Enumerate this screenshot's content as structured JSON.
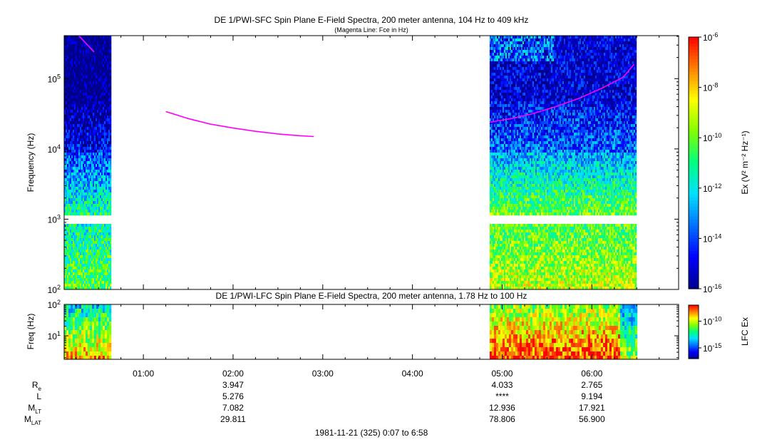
{
  "title": "DE 1/PWI-SFC  Spin Plane E-Field Spectra, 200 meter antenna, 104 Hz to 409 kHz",
  "subtitle": "(Magenta Line: Fce in Hz)",
  "lower_title": "DE 1/PWI-LFC  Spin Plane E-Field Spectra, 200 meter antenna, 1.78 Hz to 100 Hz",
  "footer": "1981-11-21 (325) 0:07 to 6:58",
  "colors": {
    "fce_line": "#ff00ff",
    "colormap": [
      "#00008c",
      "#0000ff",
      "#0070ff",
      "#00e0ff",
      "#00ff80",
      "#80ff00",
      "#ffff00",
      "#ff8000",
      "#ff0000"
    ]
  },
  "chart_data": [
    {
      "type": "heatmap",
      "name": "sfc",
      "ylabel": "Frequency (Hz)",
      "y_scale": "log",
      "ylim": [
        100,
        409000
      ],
      "y_ticks": [
        {
          "v": 100,
          "m": "10",
          "e": "2"
        },
        {
          "v": 1000,
          "m": "10",
          "e": "3"
        },
        {
          "v": 10000,
          "m": "10",
          "e": "4"
        },
        {
          "v": 100000,
          "m": "10",
          "e": "5"
        }
      ],
      "xlim": [
        0.117,
        6.967
      ],
      "x_ticks": [
        {
          "v": 1,
          "label": "01:00"
        },
        {
          "v": 2,
          "label": "02:00"
        },
        {
          "v": 3,
          "label": "03:00"
        },
        {
          "v": 4,
          "label": "04:00"
        },
        {
          "v": 5,
          "label": "05:00"
        },
        {
          "v": 6,
          "label": "06:00"
        }
      ],
      "data_intervals_hours": [
        [
          0.117,
          0.63
        ],
        [
          4.86,
          6.49
        ]
      ],
      "colorbar": {
        "label": "Ex (V² m⁻² Hz⁻¹)",
        "scale": "log",
        "range": [
          1e-16,
          1e-06
        ],
        "ticks": [
          {
            "v": -6,
            "m": "10",
            "e": "-6"
          },
          {
            "v": -8,
            "m": "10",
            "e": "-8"
          },
          {
            "v": -10,
            "m": "10",
            "e": "-10"
          },
          {
            "v": -12,
            "m": "10",
            "e": "-12"
          },
          {
            "v": -14,
            "m": "10",
            "e": "-14"
          },
          {
            "v": -16,
            "m": "10",
            "e": "-16"
          }
        ]
      },
      "fce_line_segments": [
        {
          "x": [
            0.28,
            0.45
          ],
          "y": [
            409000,
            240000
          ]
        },
        {
          "x": [
            1.25,
            1.5,
            1.75,
            2.0,
            2.25,
            2.5,
            2.75,
            2.9
          ],
          "y": [
            34000,
            27000,
            22500,
            19800,
            17800,
            16300,
            15400,
            15000
          ]
        },
        {
          "x": [
            4.86,
            5.1,
            5.35,
            5.6,
            5.85,
            6.1,
            6.35,
            6.47
          ],
          "y": [
            24000,
            27000,
            32000,
            40000,
            52000,
            72000,
            105000,
            160000
          ]
        }
      ]
    },
    {
      "type": "heatmap",
      "name": "lfc",
      "ylabel": "Freq (Hz)",
      "y_scale": "log",
      "ylim": [
        1.78,
        100
      ],
      "y_ticks": [
        {
          "v": 10,
          "m": "10",
          "e": "1"
        },
        {
          "v": 100,
          "m": "10",
          "e": "2"
        }
      ],
      "data_intervals_hours": [
        [
          0.117,
          0.63
        ],
        [
          4.86,
          6.49
        ]
      ],
      "colorbar": {
        "label": "LFC Ex",
        "scale": "log",
        "ticks": [
          {
            "v": -10,
            "m": "10",
            "e": "-10"
          },
          {
            "v": -15,
            "m": "10",
            "e": "-15"
          }
        ],
        "range": [
          1e-17,
          1e-07
        ]
      }
    }
  ],
  "orbit": {
    "rows": [
      {
        "label": "R",
        "sub": "e",
        "values": [
          {
            "t": 2,
            "v": "3.947"
          },
          {
            "t": 5,
            "v": "4.033"
          },
          {
            "t": 6,
            "v": "2.765"
          }
        ]
      },
      {
        "label": "L",
        "sub": "",
        "values": [
          {
            "t": 2,
            "v": "5.276"
          },
          {
            "t": 5,
            "v": "****"
          },
          {
            "t": 6,
            "v": "9.194"
          }
        ]
      },
      {
        "label": "M",
        "sub": "LT",
        "values": [
          {
            "t": 2,
            "v": "7.082"
          },
          {
            "t": 5,
            "v": "12.936"
          },
          {
            "t": 6,
            "v": "17.921"
          }
        ]
      },
      {
        "label": "M",
        "sub": "LAT",
        "values": [
          {
            "t": 2,
            "v": "29.811"
          },
          {
            "t": 5,
            "v": "78.806"
          },
          {
            "t": 6,
            "v": "56.900"
          }
        ]
      }
    ]
  }
}
